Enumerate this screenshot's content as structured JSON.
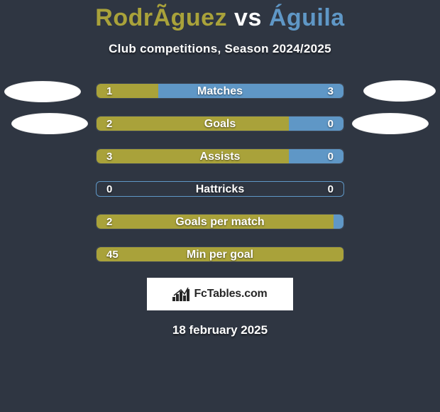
{
  "background_color": "#2f3642",
  "title": {
    "player1_name": "RodrÃ­guez",
    "vs": " vs ",
    "player2_name": "Águila",
    "player1_color": "#a9a23a",
    "player2_color": "#5f97c6"
  },
  "subtitle": "Club competitions, Season 2024/2025",
  "bar_colors": {
    "left": "#a9a23a",
    "right": "#5f97c6",
    "track_border": "#3d4654"
  },
  "rows": [
    {
      "label": "Matches",
      "left_val": "1",
      "right_val": "3",
      "left_pct": 25,
      "right_pct": 75
    },
    {
      "label": "Goals",
      "left_val": "2",
      "right_val": "0",
      "left_pct": 78,
      "right_pct": 22
    },
    {
      "label": "Assists",
      "left_val": "3",
      "right_val": "0",
      "left_pct": 78,
      "right_pct": 22
    },
    {
      "label": "Hattricks",
      "left_val": "0",
      "right_val": "0",
      "left_pct": 50,
      "right_pct": 0,
      "empty": true
    },
    {
      "label": "Goals per match",
      "left_val": "2",
      "right_val": "",
      "left_pct": 96,
      "right_pct": 4
    },
    {
      "label": "Min per goal",
      "left_val": "45",
      "right_val": "",
      "left_pct": 100,
      "right_pct": 0
    }
  ],
  "brand": {
    "text": "FcTables.com"
  },
  "date": "18 february 2025"
}
